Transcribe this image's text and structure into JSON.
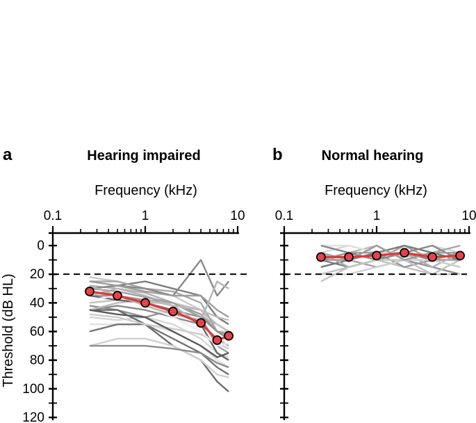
{
  "chart_data": [
    {
      "type": "line",
      "panel_letter": "a",
      "title": "Hearing impaired",
      "xlabel": "Frequency (kHz)",
      "ylabel": "Threshold (dB HL)",
      "xscale": "log",
      "xlim": [
        0.1,
        10
      ],
      "ylim": [
        0,
        120
      ],
      "y_inverted": true,
      "x_tick_labels": [
        "0.1",
        "1",
        "10"
      ],
      "y_tick_labels": [
        "0",
        "20",
        "40",
        "60",
        "80",
        "100",
        "120"
      ],
      "reference_line": 20,
      "x": [
        0.25,
        0.5,
        1,
        2,
        4,
        6,
        8
      ],
      "mean_series": {
        "name": "Mean",
        "values": [
          32,
          35,
          40,
          46,
          54,
          66,
          63
        ]
      },
      "individual_series": [
        {
          "shade": "#c8c8c8",
          "values": [
            22,
            25,
            30,
            35,
            45,
            60,
            60
          ]
        },
        {
          "shade": "#b0b0b0",
          "values": [
            28,
            30,
            33,
            40,
            50,
            55,
            60
          ]
        },
        {
          "shade": "#9a9a9a",
          "values": [
            35,
            35,
            38,
            40,
            48,
            60,
            62
          ]
        },
        {
          "shade": "#8a8a8a",
          "values": [
            45,
            42,
            45,
            50,
            55,
            65,
            70
          ]
        },
        {
          "shade": "#d6d6d6",
          "values": [
            50,
            52,
            50,
            55,
            65,
            75,
            78
          ]
        },
        {
          "shade": "#7c7c7c",
          "values": [
            30,
            28,
            25,
            30,
            35,
            50,
            55
          ]
        },
        {
          "shade": "#c0c0c0",
          "values": [
            40,
            38,
            40,
            40,
            45,
            55,
            60
          ]
        },
        {
          "shade": "#a8a8a8",
          "values": [
            25,
            25,
            30,
            32,
            40,
            60,
            65
          ]
        },
        {
          "shade": "#e0e0e0",
          "values": [
            55,
            55,
            55,
            60,
            70,
            80,
            85
          ]
        },
        {
          "shade": "#909090",
          "values": [
            42,
            45,
            50,
            45,
            50,
            60,
            65
          ]
        },
        {
          "shade": "#b8b8b8",
          "values": [
            35,
            30,
            35,
            42,
            55,
            65,
            70
          ]
        },
        {
          "shade": "#6c6c6c",
          "values": [
            45,
            45,
            55,
            70,
            80,
            95,
            102
          ]
        },
        {
          "shade": "#d0d0d0",
          "values": [
            70,
            65,
            65,
            70,
            80,
            90,
            92
          ]
        },
        {
          "shade": "#a0a0a0",
          "values": [
            30,
            32,
            36,
            40,
            50,
            70,
            75
          ]
        },
        {
          "shade": "#888888",
          "values": [
            30,
            28,
            30,
            35,
            10,
            35,
            25
          ]
        },
        {
          "shade": "#bcbcbc",
          "values": [
            45,
            40,
            38,
            42,
            45,
            50,
            52
          ]
        },
        {
          "shade": "#747474",
          "values": [
            60,
            55,
            55,
            65,
            75,
            85,
            90
          ]
        },
        {
          "shade": "#9c9c9c",
          "values": [
            25,
            28,
            32,
            35,
            35,
            45,
            50
          ]
        },
        {
          "shade": "#cccccc",
          "values": [
            48,
            50,
            55,
            58,
            62,
            68,
            72
          ]
        },
        {
          "shade": "#686868",
          "values": [
            35,
            38,
            40,
            45,
            55,
            75,
            80
          ]
        },
        {
          "shade": "#ececec",
          "values": [
            38,
            35,
            42,
            50,
            60,
            70,
            68
          ]
        },
        {
          "shade": "#8c8c8c",
          "values": [
            70,
            70,
            70,
            72,
            75,
            82,
            85
          ]
        },
        {
          "shade": "#b4b4b4",
          "values": [
            28,
            35,
            42,
            48,
            52,
            25,
            30
          ]
        },
        {
          "shade": "#5a5a5a",
          "values": [
            45,
            48,
            50,
            60,
            70,
            78,
            75
          ]
        }
      ]
    },
    {
      "type": "line",
      "panel_letter": "b",
      "title": "Normal hearing",
      "xlabel": "Frequency (kHz)",
      "xscale": "log",
      "xlim": [
        0.1,
        10
      ],
      "ylim": [
        0,
        120
      ],
      "y_inverted": true,
      "x_tick_labels": [
        "0.1",
        "1",
        "10"
      ],
      "reference_line": 20,
      "x": [
        0.25,
        0.5,
        1,
        2,
        4,
        8
      ],
      "mean_series": {
        "name": "Mean",
        "values": [
          8,
          8,
          7,
          5,
          8,
          7
        ]
      },
      "individual_series": [
        {
          "shade": "#c8c8c8",
          "values": [
            5,
            10,
            5,
            8,
            5,
            10
          ]
        },
        {
          "shade": "#a0a0a0",
          "values": [
            10,
            5,
            10,
            0,
            10,
            5
          ]
        },
        {
          "shade": "#b8b8b8",
          "values": [
            0,
            5,
            0,
            10,
            5,
            0
          ]
        },
        {
          "shade": "#909090",
          "values": [
            15,
            10,
            15,
            10,
            15,
            20
          ]
        },
        {
          "shade": "#d6d6d6",
          "values": [
            5,
            0,
            5,
            5,
            0,
            5
          ]
        },
        {
          "shade": "#808080",
          "values": [
            10,
            15,
            10,
            5,
            10,
            15
          ]
        },
        {
          "shade": "#c0c0c0",
          "values": [
            20,
            15,
            10,
            15,
            20,
            10
          ]
        },
        {
          "shade": "#a8a8a8",
          "values": [
            5,
            10,
            15,
            10,
            5,
            0
          ]
        },
        {
          "shade": "#e0e0e0",
          "values": [
            0,
            0,
            5,
            0,
            5,
            5
          ]
        },
        {
          "shade": "#989898",
          "values": [
            10,
            5,
            5,
            15,
            10,
            10
          ]
        },
        {
          "shade": "#7a7a7a",
          "values": [
            15,
            10,
            5,
            0,
            5,
            10
          ]
        },
        {
          "shade": "#b0b0b0",
          "values": [
            5,
            15,
            10,
            5,
            15,
            5
          ]
        },
        {
          "shade": "#d0d0d0",
          "values": [
            20,
            20,
            15,
            10,
            10,
            15
          ]
        },
        {
          "shade": "#888888",
          "values": [
            0,
            5,
            10,
            5,
            0,
            10
          ]
        },
        {
          "shade": "#c4c4c4",
          "values": [
            25,
            15,
            10,
            10,
            20,
            20
          ]
        },
        {
          "shade": "#9c9c9c",
          "values": [
            10,
            10,
            0,
            10,
            5,
            5
          ]
        }
      ]
    }
  ],
  "colors": {
    "mean_line": "#e03a3a",
    "mean_marker_fill": "#e8424a",
    "axis": "#000000"
  }
}
